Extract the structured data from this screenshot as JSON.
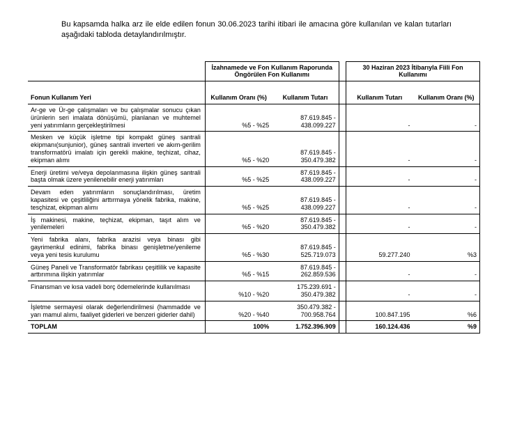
{
  "intro": "Bu kapsamda halka arz ile elde edilen fonun 30.06.2023 tarihi itibari ile amacına göre kullanılan ve kalan tutarları aşağıdaki tabloda detaylandırılmıştır.",
  "header": {
    "group1": "İzahnamede ve Fon Kullanım Raporunda Öngörülen Fon Kullanımı",
    "group2": "30 Haziran 2023 İtibarıyla Fiili Fon Kullanımı",
    "rowLabel": "Fonun Kullanım Yeri",
    "c1": "Kullanım Oranı (%)",
    "c2": "Kullanım Tutarı",
    "c3": "Kullanım Tutarı",
    "c4": "Kullanım Oranı (%)"
  },
  "rows": [
    {
      "desc": "Ar-ge ve Ür-ge çalışmaları ve bu çalışmalar sonucu çıkan ürünlerin seri imalata dönüşümü, planlanan ve muhtemel yeni yatırımların gerçekleştirilmesi",
      "c1": "%5 - %25",
      "c2": "87.619.845 - 438.099.227",
      "c3": "-",
      "c4": "-"
    },
    {
      "desc": "Mesken ve küçük işletme tipi kompakt güneş santrali ekipmanı(sunjunior), güneş santrali inverteri ve akım-gerilim transformatörü imalatı için gerekli makine, teçhizat, cihaz, ekipman alımı",
      "c1": "%5 - %20",
      "c2": "87.619.845 - 350.479.382",
      "c3": "-",
      "c4": "-"
    },
    {
      "desc": "Enerji üretimi ve/veya depolanmasına ilişkin güneş santrali başta olmak üzere yenilenebilir enerji yatırımları",
      "c1": "%5 - %25",
      "c2": "87.619.845 - 438.099.227",
      "c3": "-",
      "c4": "-"
    },
    {
      "desc": "Devam eden yatırımların sonuçlandırılması, üretim kapasitesi ve çeşitliliğini arttırmaya yönelik fabrika, makine, tesçhizat, ekipman alımı",
      "c1": "%5 - %25",
      "c2": "87.619.845 - 438.099.227",
      "c3": "-",
      "c4": "-"
    },
    {
      "desc": "İş makinesi, makine, teçhizat, ekipman, taşıt alım ve yenilemeleri",
      "c1": "%5 - %20",
      "c2": "87.619.845 - 350.479.382",
      "c3": "-",
      "c4": "-"
    },
    {
      "desc": "Yeni fabrika alanı, fabrika arazisi veya binası gibi gayrimenkul edinimi, fabrika binası genişletme/yenileme veya yeni tesis kurulumu",
      "c1": "%5 - %30",
      "c2": "87.619.845 - 525.719.073",
      "c3": "59.277.240",
      "c4": "%3"
    },
    {
      "desc": "Güneş Paneli ve Transformatör fabrikası çeşitlilik ve kapasite arttırımına ilişkin yatırımlar",
      "c1": "%5 - %15",
      "c2": "87.619.845 - 262.859.536",
      "c3": "-",
      "c4": "-"
    },
    {
      "desc": "Finansman ve kısa vadeli borç ödemelerinde kullanılması",
      "c1": "%10 - %20",
      "c2": "175.239.691 - 350.479.382",
      "c3": "-",
      "c4": "-"
    },
    {
      "desc": "İşletme sermayesi olarak değerlendirilmesi (hammadde ve yarı mamul alımı, faaliyet giderleri ve benzeri giderler dahil)",
      "c1": "%20 - %40",
      "c2": "350.479.382 - 700.958.764",
      "c3": "100.847.195",
      "c4": "%6"
    }
  ],
  "total": {
    "label": "TOPLAM",
    "c1": "100%",
    "c2": "1.752.396.909",
    "c3": "160.124.436",
    "c4": "%9"
  }
}
